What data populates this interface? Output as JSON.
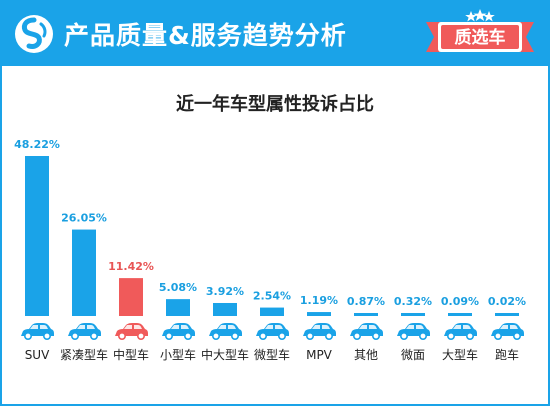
{
  "header": {
    "title": "产品质量&服务趋势分析",
    "badge": "质选车",
    "logo_icon": "brand-logo-icon"
  },
  "colors": {
    "accent": "#1aa3e8",
    "bar_default": "#1aa3e8",
    "bar_highlight": "#f05a5a",
    "label_default": "#1a9fe0",
    "label_highlight": "#e85555",
    "car_icon": "#1aa3e8"
  },
  "chart_data": {
    "type": "bar",
    "title": "近一年车型属性投诉占比",
    "categories": [
      "SUV",
      "紧凑型车",
      "中型车",
      "小型车",
      "中大型车",
      "微型车",
      "MPV",
      "其他",
      "微面",
      "大型车",
      "跑车"
    ],
    "values": [
      48.22,
      26.05,
      11.42,
      5.08,
      3.92,
      2.54,
      1.19,
      0.87,
      0.32,
      0.09,
      0.02
    ],
    "data_labels": [
      "48.22%",
      "26.05%",
      "11.42%",
      "5.08%",
      "3.92%",
      "2.54%",
      "1.19%",
      "0.87%",
      "0.32%",
      "0.09%",
      "0.02%"
    ],
    "highlight_category": "中型车",
    "unit": "%",
    "xlabel": "",
    "ylabel": "",
    "ylim": [
      0,
      48.22
    ],
    "grid": false,
    "legend": "none",
    "category_icons": [
      "suv-car-icon",
      "compact-car-icon",
      "midsize-car-icon",
      "small-car-icon",
      "large-midsize-car-icon",
      "mini-car-icon",
      "mpv-car-icon",
      "other-car-icon",
      "minivan-car-icon",
      "large-car-icon",
      "sports-car-icon"
    ]
  }
}
